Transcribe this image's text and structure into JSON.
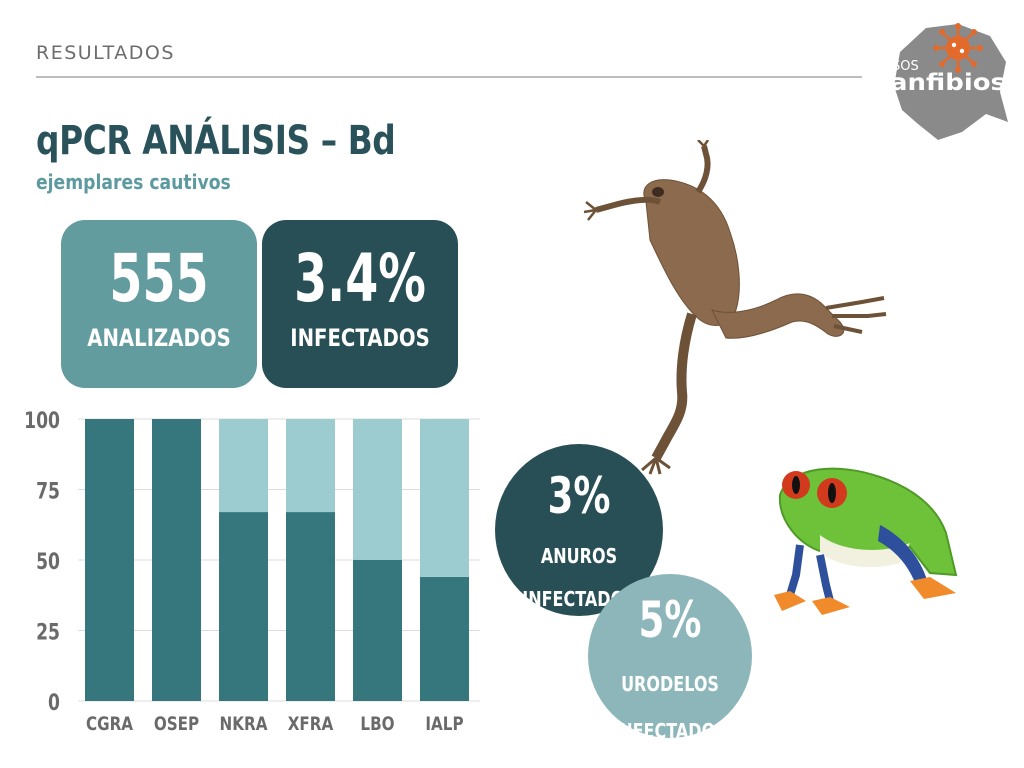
{
  "header": {
    "section": "RESULTADOS"
  },
  "logo": {
    "small_text": "SOS",
    "brand_text": "anfibios",
    "icon": "virus-icon"
  },
  "title": {
    "main": "qPCR ANÁLISIS – Bd",
    "sub": "ejemplares cautivos"
  },
  "stats": {
    "analyzed": {
      "value": "555",
      "label": "ANALIZADOS"
    },
    "infected": {
      "value": "3.4%",
      "label": "INFECTADOS"
    }
  },
  "circles": {
    "anuros": {
      "value": "3%",
      "line1": "ANUROS",
      "line2": "INFECTADOS"
    },
    "urodelos": {
      "value": "5%",
      "line1": "URODELOS",
      "line2": "INFECTADOS"
    }
  },
  "images": {
    "frog1": "xenopus-frog-photo",
    "frog2": "red-eyed-tree-frog-photo"
  },
  "colors": {
    "dark_teal": "#294f56",
    "mid_teal": "#639c9f",
    "bar_dark": "#36767d",
    "bar_light": "#9ccbd0",
    "circle_light": "#8cb6ba",
    "title": "#2a525a",
    "subtitle": "#5d9aa0"
  },
  "chart_data": {
    "type": "bar",
    "stacked": true,
    "categories": [
      "CGRA",
      "OSEP",
      "NKRA",
      "XFRA",
      "LBO",
      "IALP"
    ],
    "series": [
      {
        "values": [
          100,
          100,
          67,
          67,
          50,
          44
        ],
        "color": "#36767d"
      },
      {
        "values": [
          0,
          0,
          33,
          33,
          50,
          56
        ],
        "color": "#9ccbd0"
      }
    ],
    "ylim": [
      0,
      100
    ],
    "yticks": [
      0,
      25,
      50,
      75,
      100
    ],
    "grid": true
  }
}
